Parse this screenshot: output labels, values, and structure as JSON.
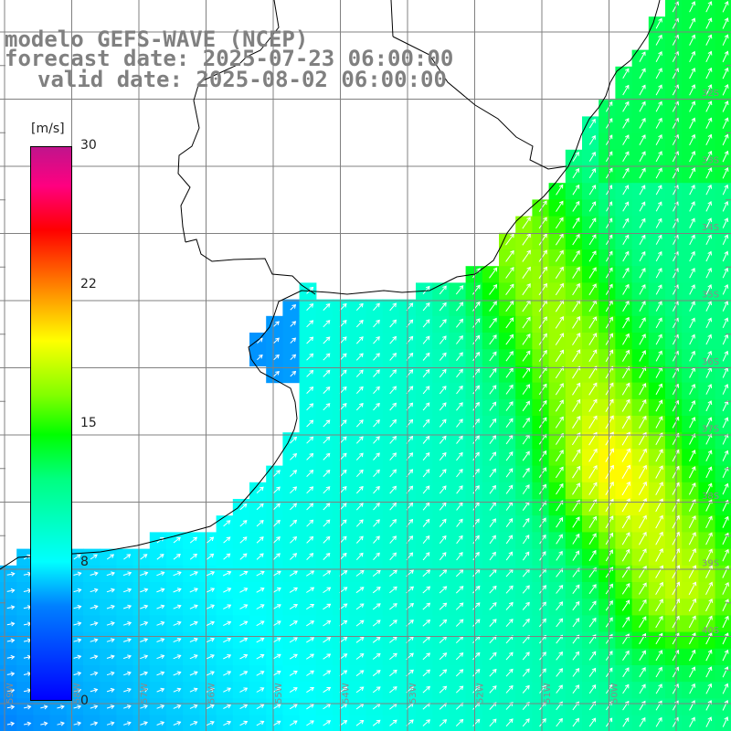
{
  "header": {
    "title": "modelo GEFS-WAVE (NCEP)",
    "forecast_date": "forecast date: 2025-07-23 06:00:00",
    "valid_date": "valid date: 2025-08-02 06:00:00"
  },
  "colorbar": {
    "unit": "[m/s]",
    "ticks": [
      "30",
      "22",
      "15",
      "8",
      "0"
    ],
    "colors": [
      "#0000ff",
      "#0080ff",
      "#00ffff",
      "#00ff80",
      "#00ff00",
      "#80ff00",
      "#ffff00",
      "#ff8000",
      "#ff0000",
      "#ff0080",
      "#c0148c"
    ]
  },
  "map": {
    "latitude_labels": [
      "32S",
      "33S",
      "34S",
      "35S",
      "36S",
      "37S",
      "38S",
      "39S",
      "40S"
    ],
    "longitude_labels": [
      "59W",
      "58W",
      "57W",
      "56W",
      "55W",
      "54W",
      "53W",
      "52W",
      "51W",
      "50W"
    ],
    "land_color": "#ffffff",
    "grid_color": "#808080",
    "coast_color": "#000000",
    "arrow_color": "#ffffff"
  }
}
